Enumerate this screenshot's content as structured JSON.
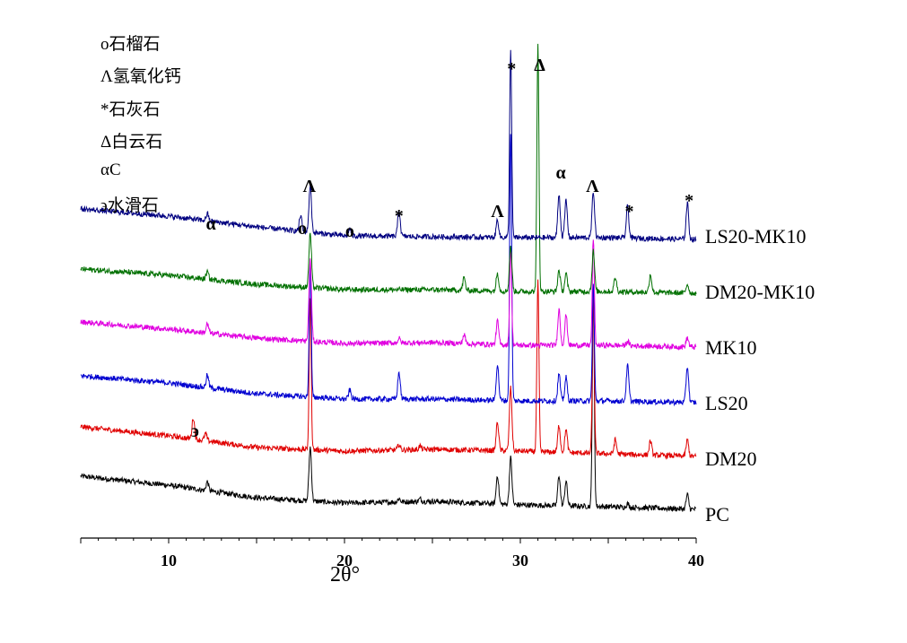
{
  "legend": {
    "items": [
      {
        "symbol": "o",
        "label": "石榴石"
      },
      {
        "symbol": "Λ",
        "label": "氢氧化钙"
      },
      {
        "symbol": "*",
        "label": "石灰石"
      },
      {
        "symbol": "Δ",
        "label": "白云石"
      },
      {
        "symbol": "α",
        "label": "C"
      },
      {
        "symbol": "϶",
        "label": "水滑石"
      }
    ]
  },
  "chart_data": {
    "type": "line",
    "xlabel": "2θ°",
    "ylabel": "",
    "xlim": [
      5,
      40
    ],
    "xticks": [
      10,
      20,
      30,
      40
    ],
    "grid": false,
    "series": [
      {
        "name": "PC",
        "color": "#000000",
        "offset": 0,
        "bg": [
          [
            5,
            52
          ],
          [
            10,
            42
          ],
          [
            15,
            28
          ],
          [
            20,
            22
          ],
          [
            25,
            24
          ],
          [
            30,
            20
          ],
          [
            35,
            18
          ],
          [
            40,
            15
          ]
        ],
        "peaks": [
          [
            12.2,
            10
          ],
          [
            18.05,
            60
          ],
          [
            23.1,
            4
          ],
          [
            24.3,
            3
          ],
          [
            28.7,
            32
          ],
          [
            29.45,
            52
          ],
          [
            32.2,
            34
          ],
          [
            32.6,
            28
          ],
          [
            34.15,
            240
          ],
          [
            36.1,
            4
          ],
          [
            39.5,
            16
          ]
        ]
      },
      {
        "name": "DM20",
        "color": "#e00000",
        "offset": 62,
        "bg": [
          [
            5,
            45
          ],
          [
            10,
            35
          ],
          [
            15,
            22
          ],
          [
            20,
            18
          ],
          [
            25,
            20
          ],
          [
            30,
            18
          ],
          [
            35,
            15
          ],
          [
            40,
            12
          ]
        ],
        "peaks": [
          [
            11.4,
            24
          ],
          [
            12.1,
            8
          ],
          [
            18.05,
            168
          ],
          [
            23.1,
            6
          ],
          [
            24.3,
            4
          ],
          [
            28.7,
            32
          ],
          [
            29.45,
            70
          ],
          [
            31.0,
            190
          ],
          [
            32.2,
            30
          ],
          [
            32.6,
            26
          ],
          [
            34.15,
            175
          ],
          [
            35.4,
            16
          ],
          [
            37.4,
            16
          ],
          [
            39.5,
            18
          ]
        ]
      },
      {
        "name": "LS20",
        "color": "#0000d0",
        "offset": 124,
        "bg": [
          [
            5,
            40
          ],
          [
            10,
            32
          ],
          [
            15,
            20
          ],
          [
            20,
            14
          ],
          [
            25,
            14
          ],
          [
            30,
            12
          ],
          [
            35,
            12
          ],
          [
            40,
            10
          ]
        ],
        "peaks": [
          [
            12.2,
            14
          ],
          [
            18.05,
            150
          ],
          [
            20.3,
            10
          ],
          [
            23.1,
            30
          ],
          [
            28.7,
            40
          ],
          [
            29.45,
            300
          ],
          [
            32.2,
            30
          ],
          [
            32.6,
            26
          ],
          [
            34.15,
            130
          ],
          [
            36.1,
            40
          ],
          [
            39.5,
            40
          ]
        ]
      },
      {
        "name": "MK10",
        "color": "#e000e0",
        "offset": 186,
        "bg": [
          [
            5,
            38
          ],
          [
            10,
            30
          ],
          [
            15,
            20
          ],
          [
            20,
            14
          ],
          [
            25,
            15
          ],
          [
            30,
            12
          ],
          [
            35,
            12
          ],
          [
            40,
            10
          ]
        ],
        "peaks": [
          [
            12.2,
            10
          ],
          [
            18.05,
            90
          ],
          [
            23.1,
            5
          ],
          [
            26.8,
            10
          ],
          [
            28.7,
            26
          ],
          [
            29.45,
            110
          ],
          [
            32.2,
            40
          ],
          [
            32.6,
            34
          ],
          [
            34.15,
            120
          ],
          [
            36.1,
            5
          ],
          [
            39.5,
            10
          ]
        ]
      },
      {
        "name": "DM20-MK10",
        "color": "#007000",
        "offset": 248,
        "bg": [
          [
            5,
            35
          ],
          [
            10,
            28
          ],
          [
            15,
            18
          ],
          [
            20,
            12
          ],
          [
            25,
            12
          ],
          [
            30,
            10
          ],
          [
            35,
            10
          ],
          [
            40,
            8
          ]
        ],
        "peaks": [
          [
            12.2,
            8
          ],
          [
            18.05,
            60
          ],
          [
            26.8,
            14
          ],
          [
            28.7,
            20
          ],
          [
            29.45,
            50
          ],
          [
            31.0,
            275
          ],
          [
            32.2,
            24
          ],
          [
            32.6,
            20
          ],
          [
            34.15,
            45
          ],
          [
            35.4,
            16
          ],
          [
            37.4,
            20
          ],
          [
            39.5,
            10
          ]
        ]
      },
      {
        "name": "LS20-MK10",
        "color": "#000080",
        "offset": 310,
        "bg": [
          [
            5,
            40
          ],
          [
            10,
            32
          ],
          [
            15,
            20
          ],
          [
            20,
            10
          ],
          [
            25,
            9
          ],
          [
            30,
            8
          ],
          [
            35,
            8
          ],
          [
            40,
            6
          ]
        ],
        "peaks": [
          [
            12.2,
            8
          ],
          [
            17.5,
            18
          ],
          [
            18.05,
            52
          ],
          [
            20.3,
            8
          ],
          [
            23.1,
            30
          ],
          [
            28.7,
            20
          ],
          [
            29.45,
            210
          ],
          [
            32.2,
            48
          ],
          [
            32.6,
            42
          ],
          [
            34.15,
            52
          ],
          [
            36.1,
            36
          ],
          [
            39.5,
            40
          ]
        ]
      }
    ],
    "annotations": [
      {
        "symbol": "α",
        "x": 12.4
      },
      {
        "symbol": "o",
        "x": 17.6
      },
      {
        "symbol": "Λ",
        "x": 18.0
      },
      {
        "symbol": "o",
        "x": 20.3
      },
      {
        "symbol": "*",
        "x": 23.1
      },
      {
        "symbol": "Λ",
        "x": 28.7
      },
      {
        "symbol": "*",
        "x": 29.5
      },
      {
        "symbol": "Δ",
        "x": 31.1
      },
      {
        "symbol": "α",
        "x": 32.3
      },
      {
        "symbol": "Λ",
        "x": 34.1
      },
      {
        "symbol": "*",
        "x": 36.2
      },
      {
        "symbol": "*",
        "x": 39.6
      },
      {
        "symbol": "϶",
        "x": 11.5
      }
    ]
  }
}
